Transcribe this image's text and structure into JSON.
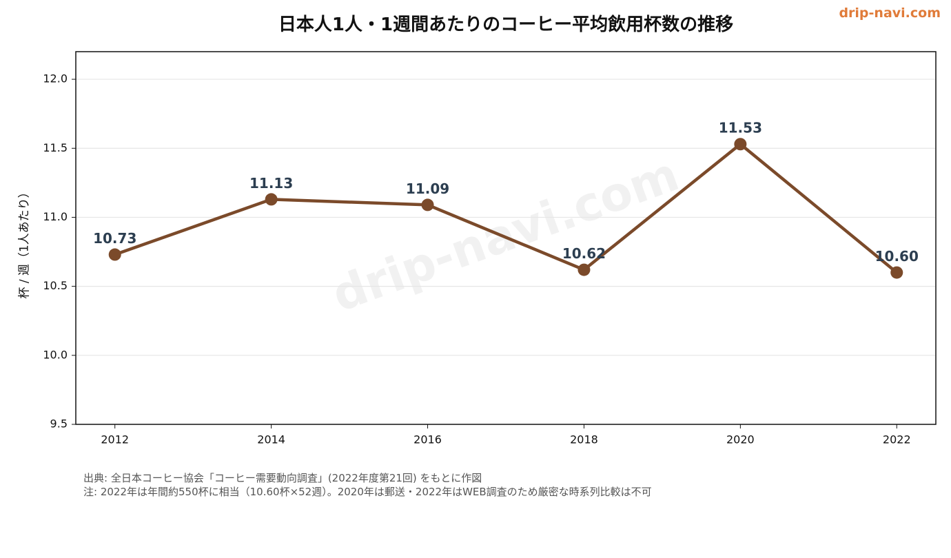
{
  "brand": "drip-navi.com",
  "watermark": "drip-navi.com",
  "footnotes": {
    "source": "出典: 全日本コーヒー協会「コーヒー需要動向調査」(2022年度第21回) をもとに作図",
    "note": "注: 2022年は年間約550杯に相当（10.60杯×52週）。2020年は郵送・2022年はWEB調査のため厳密な時系列比較は不可"
  },
  "colors": {
    "line": "#7b4a2a",
    "marker": "#7b4a2a",
    "data_label": "#2c3e50",
    "brand": "#e07b39",
    "grid": "#e6e6e6"
  },
  "chart_data": {
    "type": "line",
    "title": "日本人1人・1週間あたりのコーヒー平均飲用杯数の推移",
    "xlabel": "",
    "ylabel": "杯 / 週（1人あたり）",
    "x": [
      2012,
      2014,
      2016,
      2018,
      2020,
      2022
    ],
    "x_ticks": [
      "2012",
      "2014",
      "2016",
      "2018",
      "2020",
      "2022"
    ],
    "values": [
      10.73,
      11.13,
      11.09,
      10.62,
      11.53,
      10.6
    ],
    "data_labels": [
      "10.73",
      "11.13",
      "11.09",
      "10.62",
      "11.53",
      "10.60"
    ],
    "xlim": [
      2011.5,
      2022.5
    ],
    "ylim": [
      9.5,
      12.2
    ],
    "y_ticks": [
      "9.5",
      "10.0",
      "10.5",
      "11.0",
      "11.5",
      "12.0"
    ],
    "grid": "horizontal",
    "legend": "none"
  }
}
